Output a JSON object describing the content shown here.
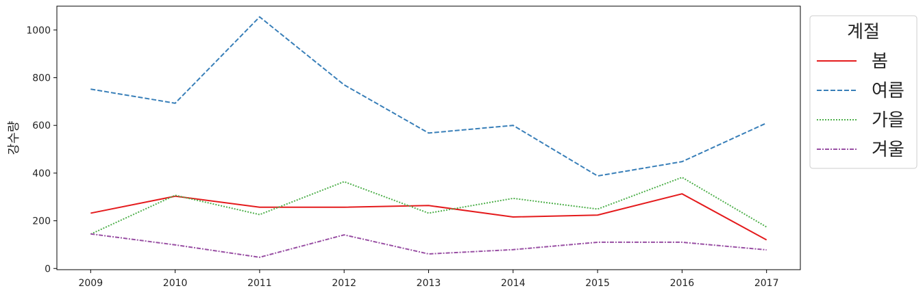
{
  "chart_data": {
    "type": "line",
    "ylabel": "강수량",
    "xlabel": "",
    "x": [
      2009,
      2010,
      2011,
      2012,
      2013,
      2014,
      2015,
      2016,
      2017
    ],
    "ylim": [
      0,
      1100
    ],
    "yticks": [
      0,
      200,
      400,
      600,
      800,
      1000
    ],
    "legend": {
      "title": "계절",
      "placement": "outside-top-right"
    },
    "series": [
      {
        "name": "봄",
        "color": "#e41a1c",
        "dash": "solid",
        "values": [
          232,
          303,
          257,
          257,
          264,
          216,
          224,
          313,
          120
        ]
      },
      {
        "name": "여름",
        "color": "#377eb8",
        "dash": "dashed",
        "values": [
          752,
          693,
          1055,
          770,
          568,
          600,
          388,
          448,
          610
        ]
      },
      {
        "name": "가을",
        "color": "#4daf4a",
        "dash": "dotted",
        "values": [
          144,
          307,
          226,
          364,
          232,
          294,
          249,
          382,
          174
        ]
      },
      {
        "name": "겨울",
        "color": "#984ea3",
        "dash": "dashdot",
        "values": [
          145,
          99,
          47,
          141,
          61,
          79,
          110,
          110,
          78
        ]
      }
    ]
  }
}
